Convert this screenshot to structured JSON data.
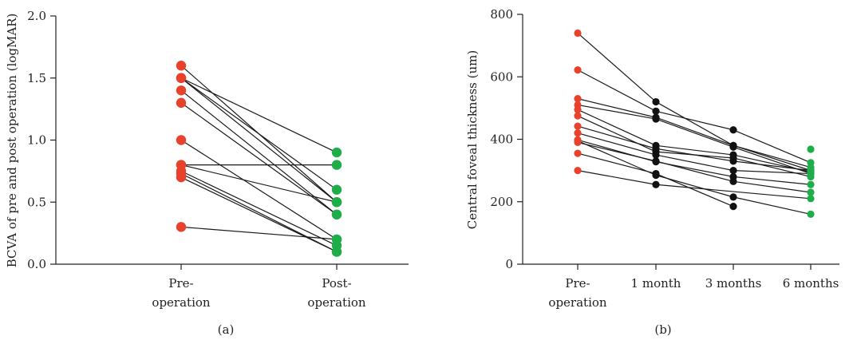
{
  "chart_data": [
    {
      "type": "scatter",
      "panel_label": "(a)",
      "ylabel": "BCVA of pre and post operation (logMAR)",
      "categories": [
        [
          "Pre-",
          "operation"
        ],
        [
          "Post-",
          "operation"
        ]
      ],
      "ylim": [
        0,
        2.0
      ],
      "yticks": [
        0,
        0.5,
        1.0,
        1.5,
        2.0
      ],
      "ytick_labels": [
        "0.0",
        "0.5",
        "1.0",
        "1.5",
        "2.0"
      ],
      "point_colors": [
        "#e8412c",
        "#1fad4a"
      ],
      "line_color": "#1a1a1a",
      "grid": false,
      "legend": false,
      "patients": [
        [
          1.6,
          0.5
        ],
        [
          1.5,
          0.6
        ],
        [
          1.5,
          0.5
        ],
        [
          1.5,
          0.9
        ],
        [
          1.4,
          0.4
        ],
        [
          1.3,
          0.4
        ],
        [
          1.0,
          0.2
        ],
        [
          0.8,
          0.5
        ],
        [
          0.8,
          0.8
        ],
        [
          0.75,
          0.15
        ],
        [
          0.73,
          0.1
        ],
        [
          0.7,
          0.1
        ],
        [
          0.3,
          0.2
        ]
      ]
    },
    {
      "type": "scatter",
      "panel_label": "(b)",
      "ylabel": "Central foveal thickness (um)",
      "categories": [
        [
          "Pre-",
          "operation"
        ],
        [
          "1 month"
        ],
        [
          "3 months"
        ],
        [
          "6 months"
        ]
      ],
      "ylim": [
        0,
        800
      ],
      "yticks": [
        0,
        200,
        400,
        600,
        800
      ],
      "ytick_labels": [
        "0",
        "200",
        "400",
        "600",
        "800"
      ],
      "point_colors": [
        "#e8412c",
        "#111111",
        "#111111",
        "#1fad4a"
      ],
      "line_color": "#1a1a1a",
      "grid": false,
      "legend": false,
      "patients": [
        [
          740,
          520,
          380,
          300
        ],
        [
          622,
          490,
          430,
          325
        ],
        [
          530,
          470,
          380,
          310
        ],
        [
          510,
          465,
          375,
          290
        ],
        [
          495,
          380,
          350,
          295
        ],
        [
          475,
          360,
          340,
          280
        ],
        [
          442,
          370,
          330,
          300
        ],
        [
          420,
          350,
          300,
          290
        ],
        [
          398,
          328,
          280,
          255
        ],
        [
          390,
          330,
          265,
          230
        ],
        [
          395,
          285,
          215,
          160
        ],
        [
          355,
          290,
          185,
          null
        ],
        [
          300,
          255,
          null,
          210
        ]
      ],
      "extra_points": [
        {
          "category_index": 3,
          "value": 368
        }
      ]
    }
  ]
}
